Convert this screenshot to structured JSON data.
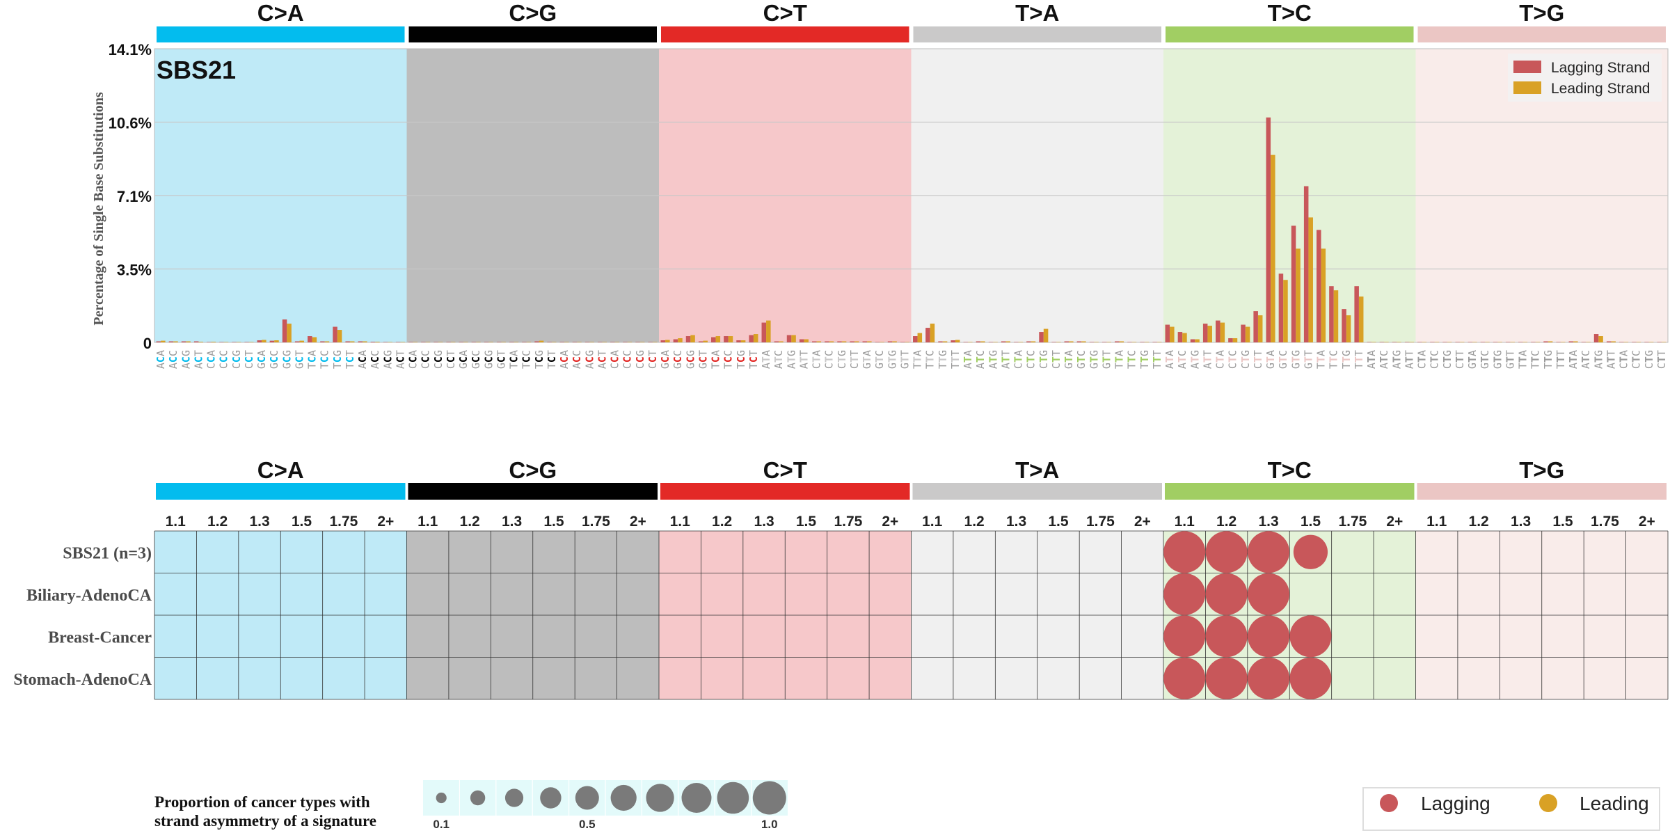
{
  "colors": {
    "mutation_types": [
      "#03bcee",
      "#010101",
      "#e32926",
      "#cac9c9",
      "#a1ce63",
      "#ebc6c4"
    ],
    "panel_backgrounds": [
      "#bfeaf7",
      "#bdbdbd",
      "#f6c8ca",
      "#f0f0f0",
      "#e4f2d8",
      "#f9ecea"
    ],
    "lagging": "#c8575a",
    "leading": "#d9a125",
    "grid": "#c8c8c8",
    "legend_panel": "#e3fafa",
    "context_grey": "#9b9b9b"
  },
  "chart_data": [
    {
      "type": "bar",
      "title": "SBS21",
      "ylabel": "Percentage of Single Base Substitutions",
      "y_ticks": [
        "0",
        "3.5%",
        "7.1%",
        "10.6%",
        "14.1%"
      ],
      "ylim": [
        0,
        14.1
      ],
      "grid": true,
      "legend_placement": "top-right",
      "mutation_types": [
        "C>A",
        "C>G",
        "C>T",
        "T>A",
        "T>C",
        "T>G"
      ],
      "series": [
        {
          "name": "Lagging Strand",
          "values": [
            0.05,
            0.05,
            0.05,
            0.05,
            0.02,
            0.02,
            0.02,
            0.02,
            0.1,
            0.08,
            1.1,
            0.05,
            0.3,
            0.05,
            0.75,
            0.05,
            0.05,
            0.03,
            0.02,
            0.02,
            0.02,
            0.02,
            0.02,
            0.02,
            0.02,
            0.02,
            0.02,
            0.02,
            0.02,
            0.02,
            0.05,
            0.02,
            0.02,
            0.02,
            0.02,
            0.02,
            0.02,
            0.02,
            0.02,
            0.02,
            0.1,
            0.15,
            0.3,
            0.05,
            0.25,
            0.3,
            0.1,
            0.35,
            0.95,
            0.05,
            0.35,
            0.15,
            0.05,
            0.05,
            0.05,
            0.05,
            0.05,
            0.02,
            0.05,
            0.02,
            0.3,
            0.7,
            0.05,
            0.1,
            0.02,
            0.05,
            0.02,
            0.05,
            0.02,
            0.05,
            0.5,
            0.02,
            0.05,
            0.05,
            0.02,
            0.02,
            0.05,
            0.02,
            0.02,
            0.02,
            0.85,
            0.5,
            0.15,
            0.9,
            1.05,
            0.2,
            0.85,
            1.5,
            10.8,
            3.3,
            5.6,
            7.5,
            5.4,
            2.7,
            1.6,
            2.7,
            0.02,
            0.02,
            0.02,
            0.02,
            0.02,
            0.02,
            0.02,
            0.02,
            0.02,
            0.02,
            0.02,
            0.02,
            0.02,
            0.02,
            0.05,
            0.02,
            0.05,
            0.02,
            0.4,
            0.05,
            0.02,
            0.02,
            0.02,
            0.02
          ]
        },
        {
          "name": "Leading Strand",
          "values": [
            0.08,
            0.05,
            0.05,
            0.03,
            0.03,
            0.02,
            0.02,
            0.02,
            0.12,
            0.1,
            0.9,
            0.08,
            0.25,
            0.05,
            0.6,
            0.05,
            0.05,
            0.03,
            0.02,
            0.02,
            0.02,
            0.02,
            0.02,
            0.02,
            0.02,
            0.02,
            0.02,
            0.02,
            0.02,
            0.02,
            0.08,
            0.02,
            0.02,
            0.02,
            0.02,
            0.02,
            0.02,
            0.02,
            0.02,
            0.02,
            0.12,
            0.2,
            0.35,
            0.08,
            0.3,
            0.3,
            0.1,
            0.4,
            1.05,
            0.05,
            0.35,
            0.15,
            0.05,
            0.05,
            0.05,
            0.05,
            0.05,
            0.02,
            0.05,
            0.02,
            0.45,
            0.9,
            0.05,
            0.12,
            0.02,
            0.05,
            0.02,
            0.05,
            0.02,
            0.05,
            0.65,
            0.02,
            0.05,
            0.05,
            0.02,
            0.02,
            0.05,
            0.02,
            0.02,
            0.02,
            0.75,
            0.45,
            0.15,
            0.8,
            0.95,
            0.2,
            0.75,
            1.3,
            9.0,
            3.0,
            4.5,
            6.0,
            4.5,
            2.5,
            1.3,
            2.2,
            0.02,
            0.02,
            0.02,
            0.02,
            0.02,
            0.02,
            0.02,
            0.02,
            0.02,
            0.02,
            0.02,
            0.02,
            0.02,
            0.02,
            0.05,
            0.02,
            0.05,
            0.02,
            0.3,
            0.05,
            0.02,
            0.02,
            0.02,
            0.02
          ]
        }
      ]
    },
    {
      "type": "scatter",
      "mutation_types": [
        "C>A",
        "C>G",
        "C>T",
        "T>A",
        "T>C",
        "T>G"
      ],
      "column_labels": [
        "1.1",
        "1.2",
        "1.3",
        "1.5",
        "1.75",
        "2+"
      ],
      "row_labels": [
        "SBS21 (n=3)",
        "Biliary-AdenoCA",
        "Breast-Cancer",
        "Stomach-AdenoCA"
      ],
      "points": [
        {
          "row": 0,
          "type": 4,
          "col": 0,
          "strand": "Lagging",
          "proportion": 1.0
        },
        {
          "row": 0,
          "type": 4,
          "col": 1,
          "strand": "Lagging",
          "proportion": 1.0
        },
        {
          "row": 0,
          "type": 4,
          "col": 2,
          "strand": "Lagging",
          "proportion": 1.0
        },
        {
          "row": 0,
          "type": 4,
          "col": 3,
          "strand": "Lagging",
          "proportion": 0.67
        },
        {
          "row": 1,
          "type": 4,
          "col": 0,
          "strand": "Lagging",
          "proportion": 1.0
        },
        {
          "row": 1,
          "type": 4,
          "col": 1,
          "strand": "Lagging",
          "proportion": 1.0
        },
        {
          "row": 1,
          "type": 4,
          "col": 2,
          "strand": "Lagging",
          "proportion": 1.0
        },
        {
          "row": 2,
          "type": 4,
          "col": 0,
          "strand": "Lagging",
          "proportion": 1.0
        },
        {
          "row": 2,
          "type": 4,
          "col": 1,
          "strand": "Lagging",
          "proportion": 1.0
        },
        {
          "row": 2,
          "type": 4,
          "col": 2,
          "strand": "Lagging",
          "proportion": 1.0
        },
        {
          "row": 2,
          "type": 4,
          "col": 3,
          "strand": "Lagging",
          "proportion": 1.0
        },
        {
          "row": 3,
          "type": 4,
          "col": 0,
          "strand": "Lagging",
          "proportion": 1.0
        },
        {
          "row": 3,
          "type": 4,
          "col": 1,
          "strand": "Lagging",
          "proportion": 1.0
        },
        {
          "row": 3,
          "type": 4,
          "col": 2,
          "strand": "Lagging",
          "proportion": 1.0
        },
        {
          "row": 3,
          "type": 4,
          "col": 3,
          "strand": "Lagging",
          "proportion": 1.0
        }
      ]
    }
  ],
  "size_legend": {
    "title_line1": "Proportion of cancer types with",
    "title_line2": "strand asymmetry of a signature",
    "tick_labels": [
      "0.1",
      "0.5",
      "1.0"
    ],
    "values": [
      0.1,
      0.2,
      0.3,
      0.4,
      0.5,
      0.6,
      0.7,
      0.8,
      0.9,
      1.0
    ]
  },
  "strand_legend": {
    "lagging_label": "Lagging",
    "leading_label": "Leading"
  }
}
